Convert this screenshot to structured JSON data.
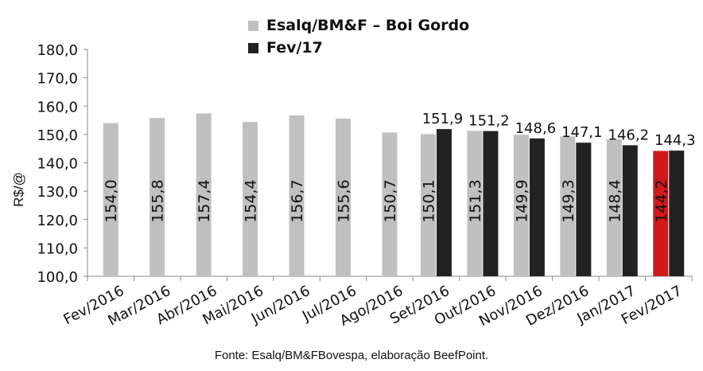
{
  "chart_data": {
    "type": "bar",
    "ylabel": "R$/@",
    "ylim": [
      100,
      180
    ],
    "ytick_step": 10,
    "yticks": [
      "100,0",
      "110,0",
      "120,0",
      "130,0",
      "140,0",
      "150,0",
      "160,0",
      "170,0",
      "180,0"
    ],
    "categories": [
      "Fev/2016",
      "Mar/2016",
      "Abr/2016",
      "Mai/2016",
      "Jun/2016",
      "Jul/2016",
      "Ago/2016",
      "Set/2016",
      "Out/2016",
      "Nov/2016",
      "Dez/2016",
      "Jan/2017",
      "Fev/2017"
    ],
    "series": [
      {
        "name": "Esalq/BM&F – Boi Gordo",
        "color": "#c0c0c0",
        "values": [
          154.0,
          155.8,
          157.4,
          154.4,
          156.7,
          155.6,
          150.7,
          150.1,
          151.3,
          149.9,
          149.3,
          148.4,
          144.2
        ],
        "labels": [
          "154,0",
          "155,8",
          "157,4",
          "154,4",
          "156,7",
          "155,6",
          "150,7",
          "150,1",
          "151,3",
          "149,9",
          "149,3",
          "148,4",
          "144,2"
        ]
      },
      {
        "name": "Fev/17",
        "color": "#222222",
        "values": [
          null,
          null,
          null,
          null,
          null,
          null,
          null,
          151.9,
          151.2,
          148.6,
          147.1,
          146.2,
          144.3
        ],
        "labels": [
          "",
          "",
          "",
          "",
          "",
          "",
          "",
          "151,9",
          "151,2",
          "148,6",
          "147,1",
          "146,2",
          "144,3"
        ]
      }
    ],
    "highlight": {
      "category_index": 12,
      "series_index": 0,
      "color": "#d0191b"
    },
    "grid": false,
    "legend_position": "top-center",
    "source": "Fonte: Esalq/BM&FBovespa, elaboração BeefPoint."
  }
}
